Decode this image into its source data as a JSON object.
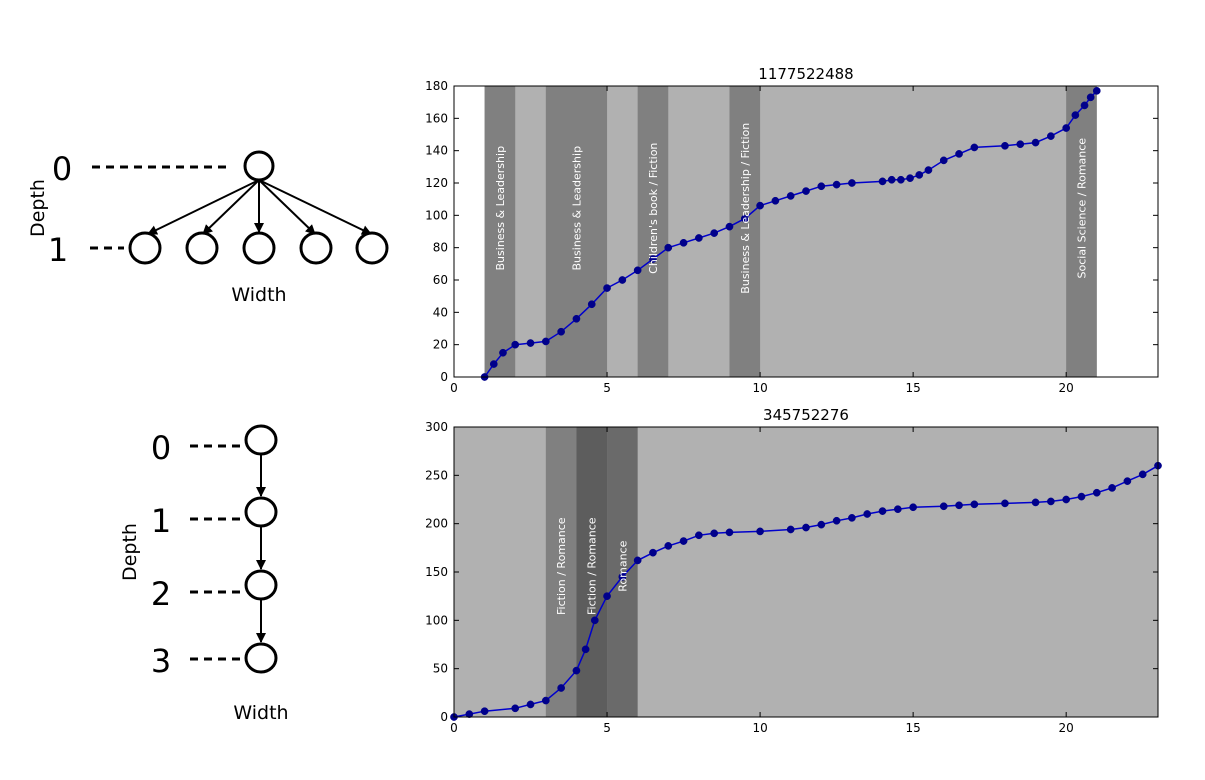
{
  "diagrams": [
    {
      "ylabel": "Depth",
      "xlabel": "Width",
      "levels": [
        {
          "label": "0",
          "nodes": 1
        },
        {
          "label": "1",
          "nodes": 5
        }
      ]
    },
    {
      "ylabel": "Depth",
      "xlabel": "Width",
      "levels": [
        {
          "label": "0",
          "nodes": 1
        },
        {
          "label": "1",
          "nodes": 1
        },
        {
          "label": "2",
          "nodes": 1
        },
        {
          "label": "3",
          "nodes": 1
        }
      ]
    }
  ],
  "colors": {
    "background_band": "#b1b1b1",
    "band_mid": "#808080",
    "band_dark": "#5d5d5d",
    "line": "#0000cc",
    "marker": "#00008b"
  },
  "chart_data": [
    {
      "type": "line",
      "title": "1177522488",
      "xlim": [
        0,
        23
      ],
      "ylim": [
        0,
        180
      ],
      "xticks": [
        0,
        5,
        10,
        15,
        20
      ],
      "yticks": [
        0,
        20,
        40,
        60,
        80,
        100,
        120,
        140,
        160,
        180
      ],
      "grid": false,
      "background_span": [
        1,
        21
      ],
      "bands": [
        {
          "x0": 1,
          "x1": 2,
          "label": "Business & Leadership",
          "shade": "mid"
        },
        {
          "x0": 3,
          "x1": 5,
          "label": "Business & Leadership",
          "shade": "mid"
        },
        {
          "x0": 6,
          "x1": 7,
          "label": "Children's book / Fiction",
          "shade": "mid"
        },
        {
          "x0": 9,
          "x1": 10,
          "label": "Business & Leadership / Fiction",
          "shade": "mid"
        },
        {
          "x0": 20,
          "x1": 21,
          "label": "Social Science / Romance",
          "shade": "mid"
        }
      ],
      "series": [
        {
          "x": [
            1,
            1.3,
            1.6,
            2,
            2.5,
            3,
            3.5,
            4,
            4.5,
            5,
            5.5,
            6,
            6.5,
            7,
            7.5,
            8,
            8.5,
            9,
            9.5,
            10,
            10.5,
            11,
            11.5,
            12,
            12.5,
            13,
            14,
            14.3,
            14.6,
            14.9,
            15.2,
            15.5,
            16,
            16.5,
            17,
            18,
            18.5,
            19,
            19.5,
            20,
            20.3,
            20.6,
            20.8,
            21
          ],
          "y": [
            0,
            8,
            15,
            20,
            21,
            22,
            28,
            36,
            45,
            55,
            60,
            66,
            73,
            80,
            83,
            86,
            89,
            93,
            98,
            106,
            109,
            112,
            115,
            118,
            119,
            120,
            121,
            122,
            122,
            123,
            125,
            128,
            134,
            138,
            142,
            143,
            144,
            145,
            149,
            154,
            162,
            168,
            173,
            177
          ]
        }
      ]
    },
    {
      "type": "line",
      "title": "345752276",
      "xlim": [
        0,
        23
      ],
      "ylim": [
        0,
        300
      ],
      "xticks": [
        0,
        5,
        10,
        15,
        20
      ],
      "yticks": [
        0,
        50,
        100,
        150,
        200,
        250,
        300
      ],
      "grid": false,
      "background_span": [
        0,
        23
      ],
      "bands": [
        {
          "x0": 3,
          "x1": 4,
          "label": "Fiction / Romance",
          "shade": "mid"
        },
        {
          "x0": 4,
          "x1": 5,
          "label": "Fiction / Romance",
          "shade": "dark"
        },
        {
          "x0": 5,
          "x1": 6,
          "label": "Romance",
          "shade": "darkmid"
        }
      ],
      "series": [
        {
          "x": [
            0,
            0.5,
            1,
            2,
            2.5,
            3,
            3.5,
            4,
            4.3,
            4.6,
            5,
            5.5,
            6,
            6.5,
            7,
            7.5,
            8,
            8.5,
            9,
            10,
            11,
            11.5,
            12,
            12.5,
            13,
            13.5,
            14,
            14.5,
            15,
            16,
            16.5,
            17,
            18,
            19,
            19.5,
            20,
            20.5,
            21,
            21.5,
            22,
            22.5,
            23
          ],
          "y": [
            0,
            3,
            6,
            9,
            13,
            17,
            30,
            48,
            70,
            100,
            125,
            145,
            162,
            170,
            177,
            182,
            188,
            190,
            191,
            192,
            194,
            196,
            199,
            203,
            206,
            210,
            213,
            215,
            217,
            218,
            219,
            220,
            221,
            222,
            223,
            225,
            228,
            232,
            237,
            244,
            251,
            260
          ]
        }
      ]
    }
  ]
}
